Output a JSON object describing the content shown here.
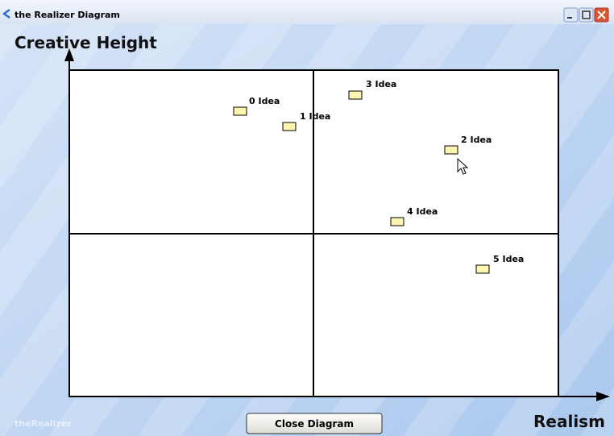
{
  "window": {
    "title": "the Realizer Diagram"
  },
  "diagram": {
    "y_axis_label": "Creative Height",
    "x_axis_label": "Realism",
    "ideas": [
      "0 Idea",
      "1 Idea",
      "3 Idea",
      "2 Idea",
      "4 Idea",
      "5 Idea"
    ]
  },
  "button": {
    "label": "Close Diagram"
  },
  "watermark": "theRealizer"
}
